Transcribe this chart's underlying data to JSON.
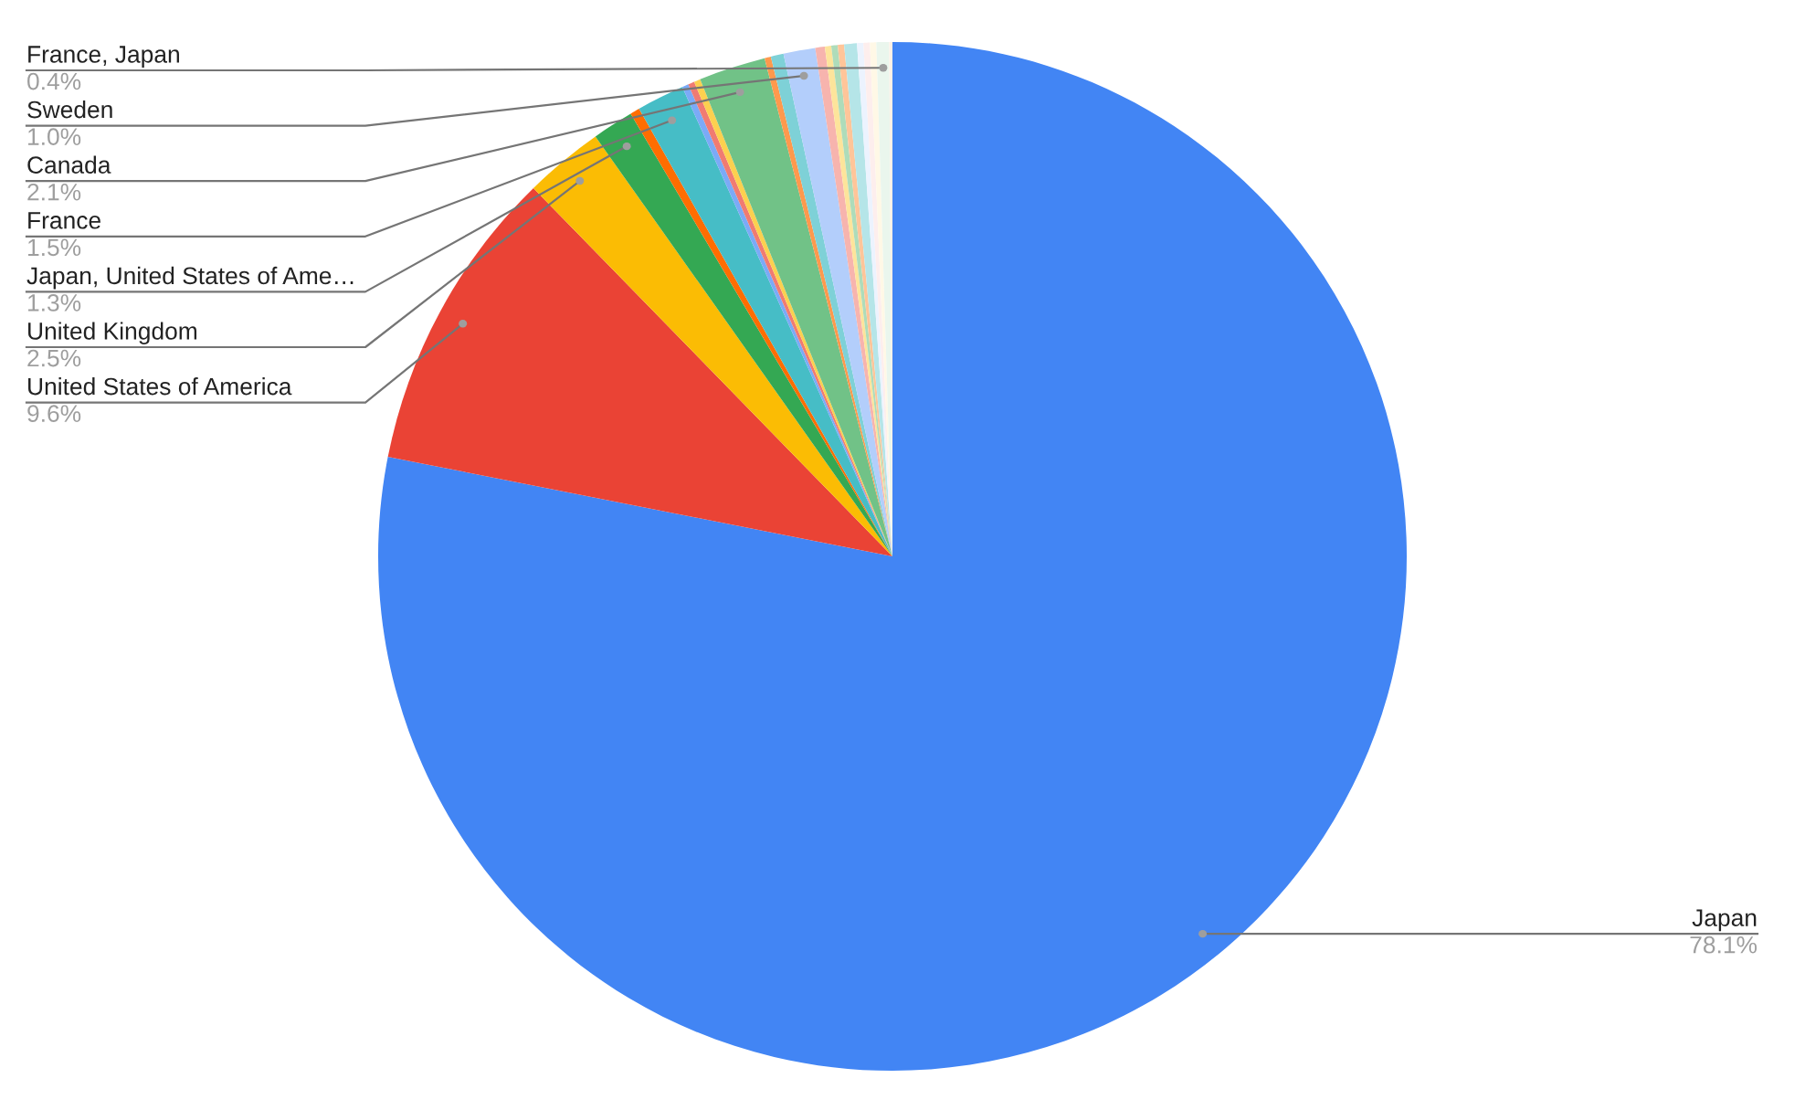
{
  "chart_data": {
    "type": "pie",
    "categories": [
      "Japan",
      "United States of America",
      "United Kingdom",
      "Japan, United States of Ame…",
      null,
      "France",
      null,
      null,
      null,
      "Canada",
      null,
      null,
      "Sweden",
      null,
      null,
      null,
      null,
      null,
      null,
      null,
      null,
      "France, Japan",
      null
    ],
    "values": [
      78.1,
      9.6,
      2.5,
      1.3,
      0.3,
      1.5,
      0.2,
      0.2,
      0.2,
      2.1,
      0.2,
      0.4,
      1.0,
      0.3,
      0.2,
      0.2,
      0.2,
      0.4,
      0.2,
      0.2,
      0.2,
      0.4,
      0.1
    ],
    "value_labels": [
      "78.1%",
      "9.6%",
      "2.5%",
      "1.3%",
      null,
      "1.5%",
      null,
      null,
      null,
      "2.1%",
      null,
      null,
      "1.0%",
      null,
      null,
      null,
      null,
      null,
      null,
      null,
      null,
      "0.4%",
      null
    ],
    "colors": [
      "#4285f4",
      "#ea4335",
      "#fbbc04",
      "#34a853",
      "#ff6d01",
      "#46bdc6",
      "#7baaf7",
      "#f07b72",
      "#fcd04f",
      "#71c287",
      "#ff994d",
      "#7ed1d7",
      "#b3cefb",
      "#f7b4ae",
      "#fde49b",
      "#aedcba",
      "#ffc599",
      "#b5e5e8",
      "#ecf3fe",
      "#fdeeed",
      "#fff8e6",
      "#eaf6ed",
      "#fff0e6"
    ],
    "legend": false
  }
}
